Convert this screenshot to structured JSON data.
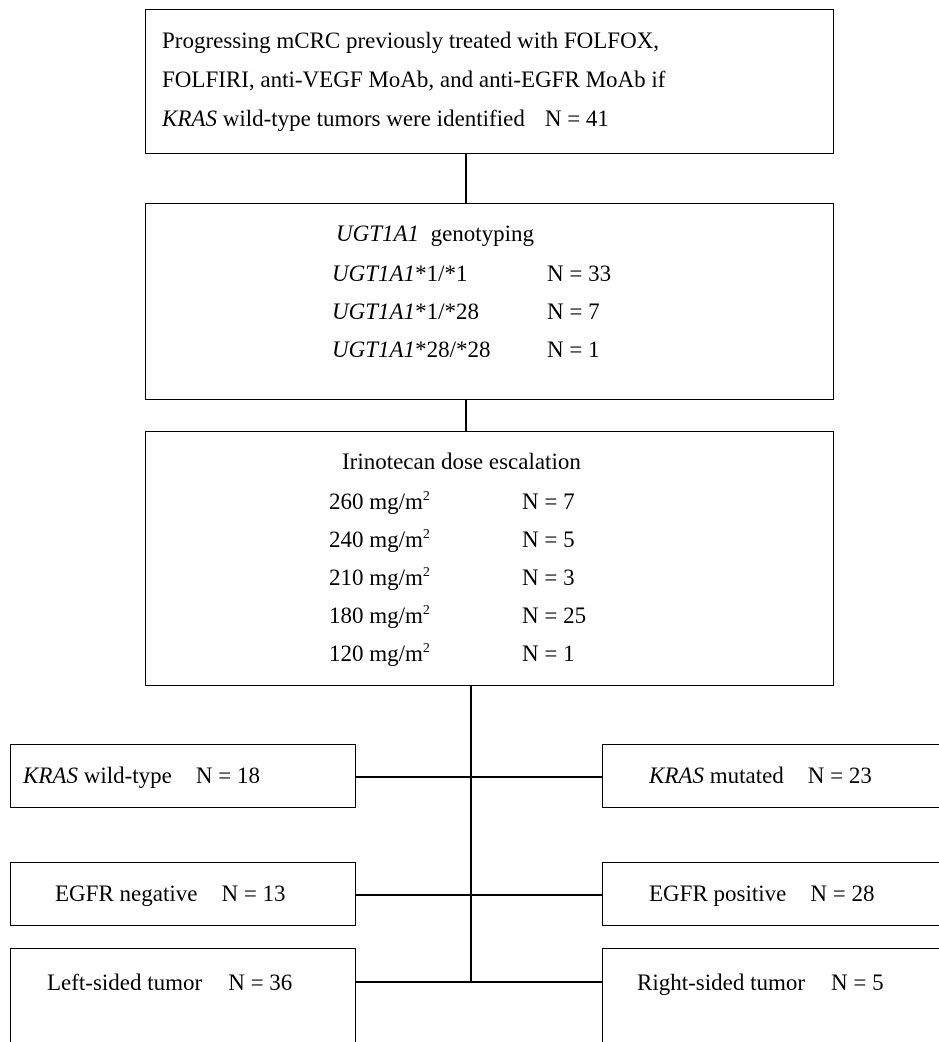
{
  "intro": {
    "line1": "Progressing mCRC previously treated with FOLFOX,",
    "line2": "FOLFIRI, anti-VEGF MoAb, and anti-EGFR MoAb if",
    "line3_italic": "KRAS",
    "line3_rest": " wild-type tumors were identified",
    "n": "N = 41"
  },
  "genotyping": {
    "title_italic": "UGT1A1",
    "title_rest": "genotyping",
    "rows": [
      {
        "gene": "UGT1A1",
        "allele": "*1/*1",
        "n": "N = 33"
      },
      {
        "gene": "UGT1A1",
        "allele": "*1/*28",
        "n": "N = 7"
      },
      {
        "gene": "UGT1A1",
        "allele": "*28/*28",
        "n": "N = 1"
      }
    ]
  },
  "dose": {
    "title": "Irinotecan dose escalation",
    "unit": "mg/m",
    "unit_sup": "2",
    "rows": [
      {
        "dose": "260",
        "n": "N = 7"
      },
      {
        "dose": "240",
        "n": "N = 5"
      },
      {
        "dose": "210",
        "n": "N = 3"
      },
      {
        "dose": "180",
        "n": "N = 25"
      },
      {
        "dose": "120",
        "n": "N = 1"
      }
    ]
  },
  "kras": {
    "left": {
      "italic": "KRAS",
      "rest": " wild-type",
      "n": "N = 18"
    },
    "right": {
      "italic": "KRAS",
      "rest": " mutated",
      "n": "N = 23"
    }
  },
  "egfr": {
    "left": {
      "label": "EGFR negative",
      "n": "N = 13"
    },
    "right": {
      "label": "EGFR positive",
      "n": "N = 28"
    }
  },
  "side": {
    "left": {
      "label": "Left-sided tumor",
      "n": "N = 36"
    },
    "right": {
      "label": "Right-sided tumor",
      "n": "N = 5"
    }
  }
}
